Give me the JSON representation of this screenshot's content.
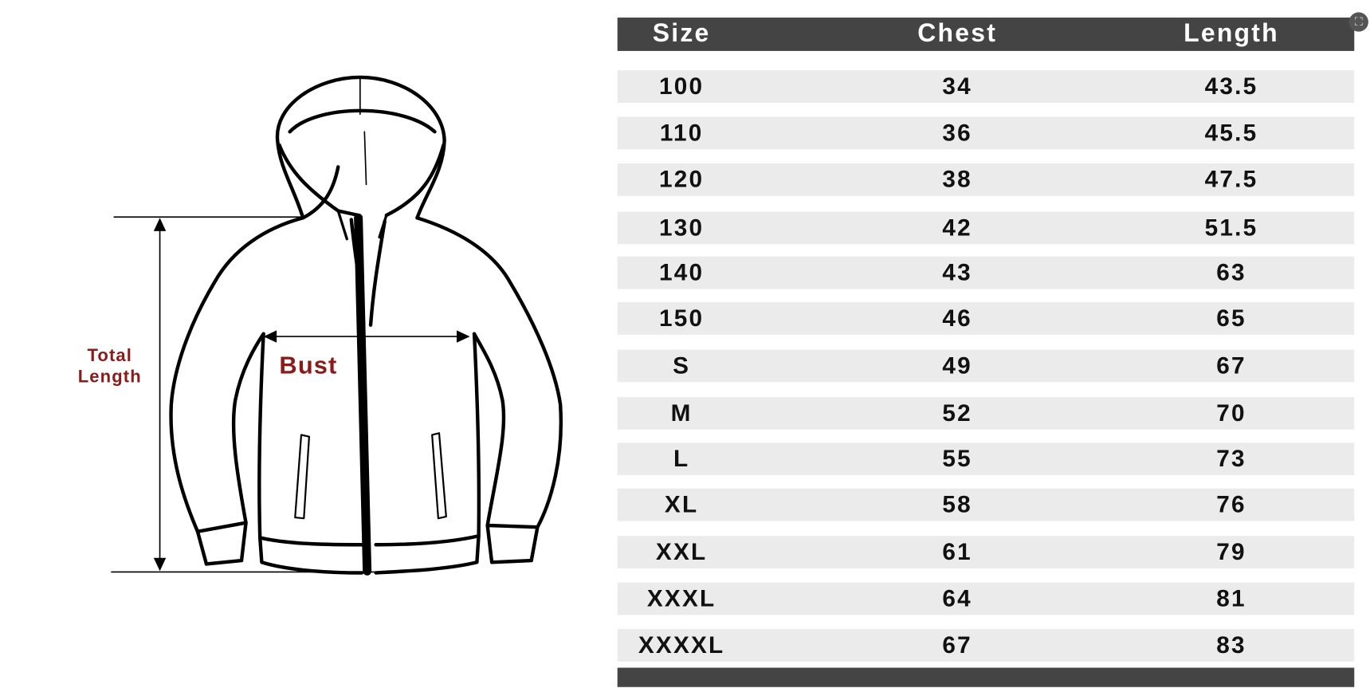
{
  "labels": {
    "total_length": "Total Length",
    "bust": "Bust"
  },
  "table": {
    "headers": [
      "Size",
      "Chest",
      "Length"
    ],
    "rows": [
      [
        "100",
        "34",
        "43.5"
      ],
      [
        "110",
        "36",
        "45.5"
      ],
      [
        "120",
        "38",
        "47.5"
      ],
      [
        "130",
        "42",
        "51.5"
      ],
      [
        "140",
        "43",
        "63"
      ],
      [
        "150",
        "46",
        "65"
      ],
      [
        "S",
        "49",
        "67"
      ],
      [
        "M",
        "52",
        "70"
      ],
      [
        "L",
        "55",
        "73"
      ],
      [
        "XL",
        "58",
        "76"
      ],
      [
        "XXL",
        "61",
        "79"
      ],
      [
        "XXXL",
        "64",
        "81"
      ],
      [
        "XXXXL",
        "67",
        "83"
      ]
    ]
  },
  "colors": {
    "header_bg": "#444444",
    "row_bg": "#ebebeb",
    "label": "#8b1a1a"
  },
  "icons": {
    "expand": "expand-icon"
  }
}
